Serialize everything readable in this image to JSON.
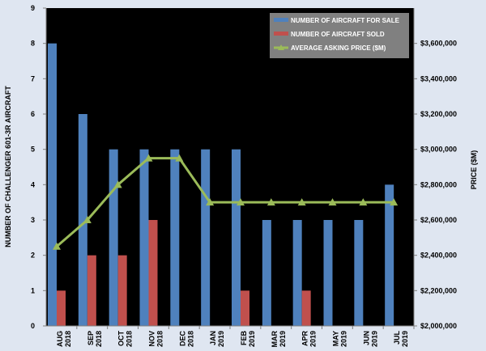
{
  "chart_data": {
    "type": "bar",
    "categories": [
      [
        "AUG",
        "2018"
      ],
      [
        "SEP",
        "2018"
      ],
      [
        "OCT",
        "2018"
      ],
      [
        "NOV",
        "2018"
      ],
      [
        "DEC",
        "2018"
      ],
      [
        "JAN",
        "2019"
      ],
      [
        "FEB",
        "2019"
      ],
      [
        "MAR",
        "2019"
      ],
      [
        "APR",
        "2019"
      ],
      [
        "MAY",
        "2019"
      ],
      [
        "JUN",
        "2019"
      ],
      [
        "JUL",
        "2019"
      ]
    ],
    "ylabel": "NUMBER OF CHALLENGER 601-3R  AIRCRAFT",
    "y2label": "PRICE ($M)",
    "ylim": [
      0,
      9
    ],
    "y_ticks": [
      "0",
      "1",
      "2",
      "3",
      "4",
      "5",
      "6",
      "7",
      "8",
      "9"
    ],
    "y2lim": [
      2000000,
      3800000
    ],
    "y2_ticks": [
      "$2,000,000",
      "$2,200,000",
      "$2,400,000",
      "$2,600,000",
      "$2,800,000",
      "$3,000,000",
      "$3,200,000",
      "$3,400,000",
      "$3,600,000"
    ],
    "legend_position": "top-right",
    "grid": false,
    "series": [
      {
        "name": "NUMBER OF AIRCRAFT FOR SALE",
        "type": "bar",
        "axis": "left",
        "color": "#4f81bd",
        "values": [
          8,
          6,
          5,
          5,
          5,
          5,
          5,
          3,
          3,
          3,
          3,
          4
        ]
      },
      {
        "name": "NUMBER OF AIRCRAFT SOLD",
        "type": "bar",
        "axis": "left",
        "color": "#c0504d",
        "values": [
          1,
          2,
          2,
          3,
          0,
          0,
          1,
          0,
          1,
          0,
          0,
          0
        ]
      },
      {
        "name": "AVERAGE ASKING PRICE ($M)",
        "type": "line",
        "axis": "right",
        "color": "#9bbb59",
        "values": [
          2450000,
          2600000,
          2800000,
          2950000,
          2950000,
          2700000,
          2700000,
          2700000,
          2700000,
          2700000,
          2700000,
          2700000
        ]
      }
    ]
  }
}
